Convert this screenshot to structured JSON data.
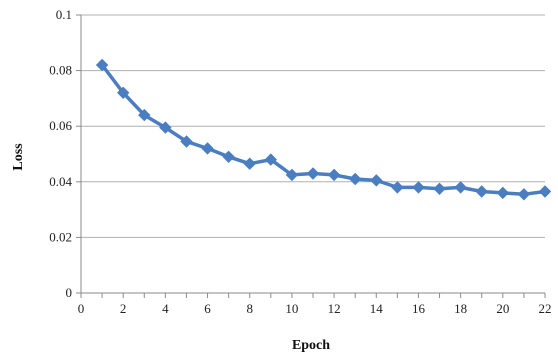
{
  "chart_data": {
    "type": "line",
    "xlabel": "Epoch",
    "ylabel": "Loss",
    "x_ticks": [
      0,
      2,
      4,
      6,
      8,
      10,
      12,
      14,
      16,
      18,
      20,
      22
    ],
    "y_ticks": [
      "0",
      "0.02",
      "0.04",
      "0.06",
      "0.08",
      "0.1"
    ],
    "xlim": [
      0,
      22
    ],
    "ylim": [
      0,
      0.1
    ],
    "grid": "horizontal",
    "legend": "none",
    "colors": {
      "series": "#4a7ec0",
      "grid": "#b0b0b0",
      "axis": "#8a8a8a"
    },
    "x": [
      1,
      2,
      3,
      4,
      5,
      6,
      7,
      8,
      9,
      10,
      11,
      12,
      13,
      14,
      15,
      16,
      17,
      18,
      19,
      20,
      21,
      22
    ],
    "series": [
      {
        "values": [
          0.082,
          0.072,
          0.064,
          0.0595,
          0.0545,
          0.052,
          0.049,
          0.0465,
          0.048,
          0.0425,
          0.043,
          0.0425,
          0.041,
          0.0405,
          0.038,
          0.038,
          0.0375,
          0.038,
          0.0365,
          0.036,
          0.0355,
          0.0365
        ]
      }
    ]
  }
}
